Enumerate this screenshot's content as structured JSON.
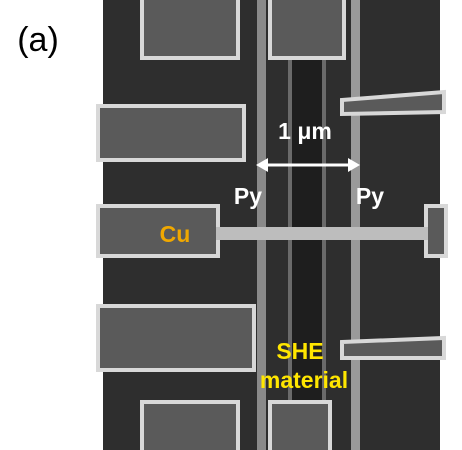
{
  "panel_label": "(a)",
  "scale_bar": "1 μm",
  "labels": {
    "py_left": "Py",
    "py_right": "Py",
    "cu": "Cu",
    "she_line1": "SHE",
    "she_line2": "material"
  }
}
